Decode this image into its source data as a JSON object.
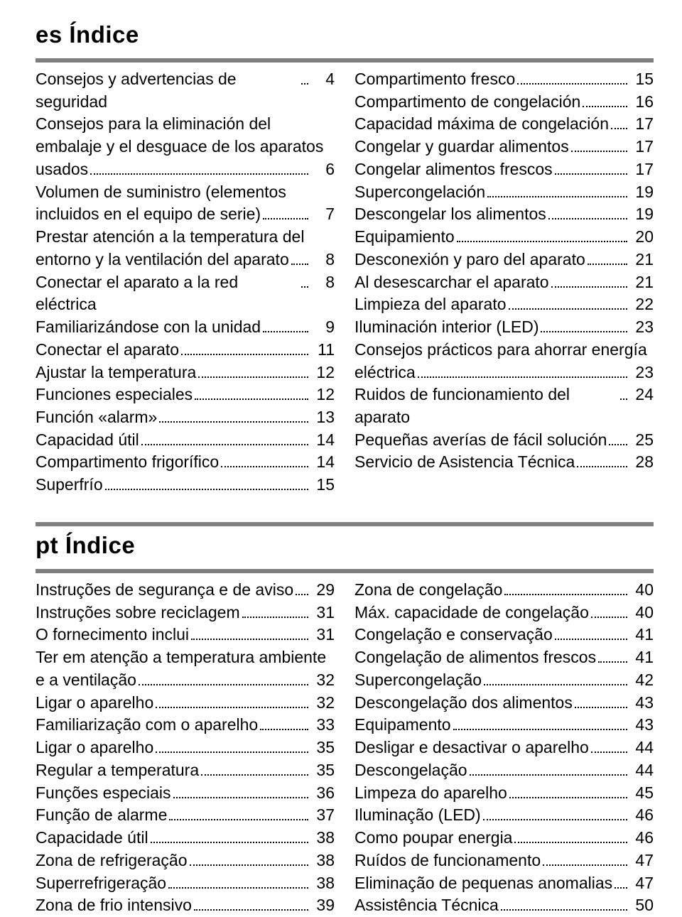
{
  "background_color": "#ffffff",
  "text_color": "#000000",
  "rule_color": "#7f7f7f",
  "font_family": "Arial, Helvetica, sans-serif",
  "title_fontsize": 33,
  "body_fontsize": 23,
  "sections": [
    {
      "id": "es",
      "title": "es   Índice",
      "left": [
        {
          "label": "Consejos y advertencias de seguridad",
          "page": 4
        },
        {
          "label": "Consejos para la eliminación del embalaje y el desguace de los aparatos usados",
          "page": 6
        },
        {
          "label": "Volumen de suministro (elementos incluidos en el equipo de serie)",
          "page": 7
        },
        {
          "label": "Prestar atención a la temperatura del entorno y la ventilación del aparato",
          "page": 8
        },
        {
          "label": "Conectar el aparato a la red eléctrica",
          "page": 8
        },
        {
          "label": "Familiarizándose con la unidad",
          "page": 9
        },
        {
          "label": "Conectar el aparato",
          "page": 11
        },
        {
          "label": "Ajustar la temperatura",
          "page": 12
        },
        {
          "label": "Funciones especiales",
          "page": 12
        },
        {
          "label": "Función «alarm»",
          "page": 13
        },
        {
          "label": "Capacidad útil",
          "page": 14
        },
        {
          "label": "Compartimento frigorífico",
          "page": 14
        },
        {
          "label": "Superfrío",
          "page": 15
        }
      ],
      "right": [
        {
          "label": "Compartimento fresco",
          "page": 15
        },
        {
          "label": "Compartimento de congelación",
          "page": 16
        },
        {
          "label": "Capacidad máxima de congelación",
          "page": 17
        },
        {
          "label": "Congelar y guardar alimentos",
          "page": 17
        },
        {
          "label": "Congelar alimentos frescos",
          "page": 17
        },
        {
          "label": "Supercongelación",
          "page": 19
        },
        {
          "label": "Descongelar los alimentos",
          "page": 19
        },
        {
          "label": "Equipamiento",
          "page": 20
        },
        {
          "label": "Desconexión y paro del aparato",
          "page": 21
        },
        {
          "label": "Al desescarchar el aparato",
          "page": 21
        },
        {
          "label": "Limpieza del aparato",
          "page": 22
        },
        {
          "label": "Iluminación interior (LED)",
          "page": 23
        },
        {
          "label": "Consejos prácticos para ahorrar energía eléctrica",
          "page": 23
        },
        {
          "label": "Ruidos de funcionamiento del aparato",
          "page": 24
        },
        {
          "label": "Pequeñas averías de fácil solución",
          "page": 25
        },
        {
          "label": "Servicio de Asistencia Técnica",
          "page": 28
        }
      ]
    },
    {
      "id": "pt",
      "title": "pt   Índice",
      "left": [
        {
          "label": "Instruções de segurança e de aviso",
          "page": 29
        },
        {
          "label": "Instruções sobre reciclagem",
          "page": 31
        },
        {
          "label": "O fornecimento inclui",
          "page": 31
        },
        {
          "label": "Ter em atenção a temperatura ambiente e a ventilação",
          "page": 32
        },
        {
          "label": "Ligar o aparelho",
          "page": 32
        },
        {
          "label": "Familiarização com o aparelho",
          "page": 33
        },
        {
          "label": "Ligar o aparelho",
          "page": 35
        },
        {
          "label": "Regular a temperatura",
          "page": 35
        },
        {
          "label": "Funções especiais",
          "page": 36
        },
        {
          "label": "Função de alarme",
          "page": 37
        },
        {
          "label": "Capacidade útil",
          "page": 38
        },
        {
          "label": "Zona de refrigeração",
          "page": 38
        },
        {
          "label": "Superrefrigeração",
          "page": 38
        },
        {
          "label": "Zona de frio intensivo",
          "page": 39
        }
      ],
      "right": [
        {
          "label": "Zona de congelação",
          "page": 40
        },
        {
          "label": "Máx. capacidade de congelação",
          "page": 40
        },
        {
          "label": "Congelação e conservação",
          "page": 41
        },
        {
          "label": "Congelação de alimentos frescos",
          "page": 41
        },
        {
          "label": "Supercongelação",
          "page": 42
        },
        {
          "label": "Descongelação dos alimentos",
          "page": 43
        },
        {
          "label": "Equipamento",
          "page": 43
        },
        {
          "label": "Desligar e desactivar o aparelho",
          "page": 44
        },
        {
          "label": "Descongelação",
          "page": 44
        },
        {
          "label": "Limpeza do aparelho",
          "page": 45
        },
        {
          "label": "Iluminação (LED)",
          "page": 46
        },
        {
          "label": "Como poupar energia",
          "page": 46
        },
        {
          "label": "Ruídos de funcionamento",
          "page": 47
        },
        {
          "label": "Eliminação de pequenas anomalias",
          "page": 47
        },
        {
          "label": "Assistência Técnica",
          "page": 50
        }
      ]
    }
  ]
}
